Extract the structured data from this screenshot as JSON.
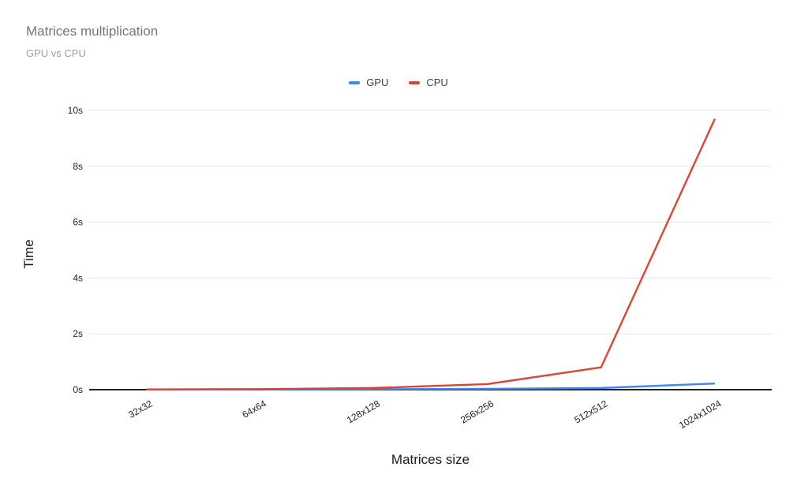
{
  "header": {
    "title": "Matrices multiplication",
    "subtitle": "GPU vs CPU"
  },
  "legend": {
    "items": [
      {
        "label": "GPU",
        "color": "#4285f4"
      },
      {
        "label": "CPU",
        "color": "#db4437"
      }
    ]
  },
  "chart_data": {
    "type": "line",
    "title": "Matrices multiplication",
    "subtitle": "GPU vs CPU",
    "categories": [
      "32x32",
      "64x64",
      "128x128",
      "256x256",
      "512x512",
      "1024x1024"
    ],
    "series": [
      {
        "name": "GPU",
        "color": "#4285f4",
        "values": [
          0.005,
          0.008,
          0.015,
          0.03,
          0.06,
          0.22
        ]
      },
      {
        "name": "CPU",
        "color": "#db4437",
        "values": [
          0.01,
          0.02,
          0.06,
          0.2,
          0.8,
          9.7
        ]
      }
    ],
    "xlabel": "Matrices size",
    "ylabel": "Time",
    "ylim": [
      0,
      10
    ],
    "yticks": [
      {
        "value": 0,
        "label": "0s"
      },
      {
        "value": 2,
        "label": "2s"
      },
      {
        "value": 4,
        "label": "4s"
      },
      {
        "value": 6,
        "label": "6s"
      },
      {
        "value": 8,
        "label": "8s"
      },
      {
        "value": 10,
        "label": "10s"
      }
    ],
    "grid": true,
    "legend_position": "top-center"
  },
  "colors": {
    "background": "#ffffff",
    "gridline": "#e3e3e3",
    "axis_line": "#212121",
    "tick_label": "#222222",
    "axis_title": "#1a1a1a",
    "title": "#757575",
    "subtitle": "#9e9e9e"
  }
}
